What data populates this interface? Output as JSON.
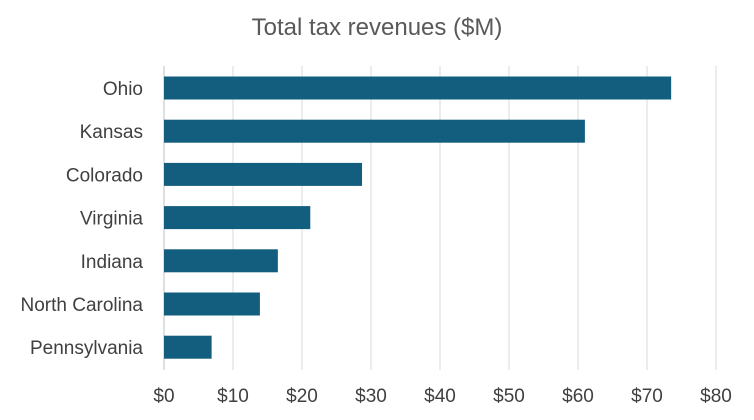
{
  "chart_data": {
    "type": "bar",
    "orientation": "horizontal",
    "title": "Total tax revenues ($M)",
    "xlabel": "",
    "ylabel": "",
    "categories": [
      "Ohio",
      "Kansas",
      "Colorado",
      "Virginia",
      "Indiana",
      "North Carolina",
      "Pennsylvania"
    ],
    "values": [
      73.5,
      61.0,
      28.7,
      21.2,
      16.5,
      13.9,
      6.9
    ],
    "xlim": [
      0,
      80
    ],
    "ticks": [
      0,
      10,
      20,
      30,
      40,
      50,
      60,
      70,
      80
    ],
    "tick_labels": [
      "$0",
      "$10",
      "$20",
      "$30",
      "$40",
      "$50",
      "$60",
      "$70",
      "$80"
    ],
    "bar_color": "#135e7f",
    "gridlines": "vertical",
    "legend": "none"
  }
}
